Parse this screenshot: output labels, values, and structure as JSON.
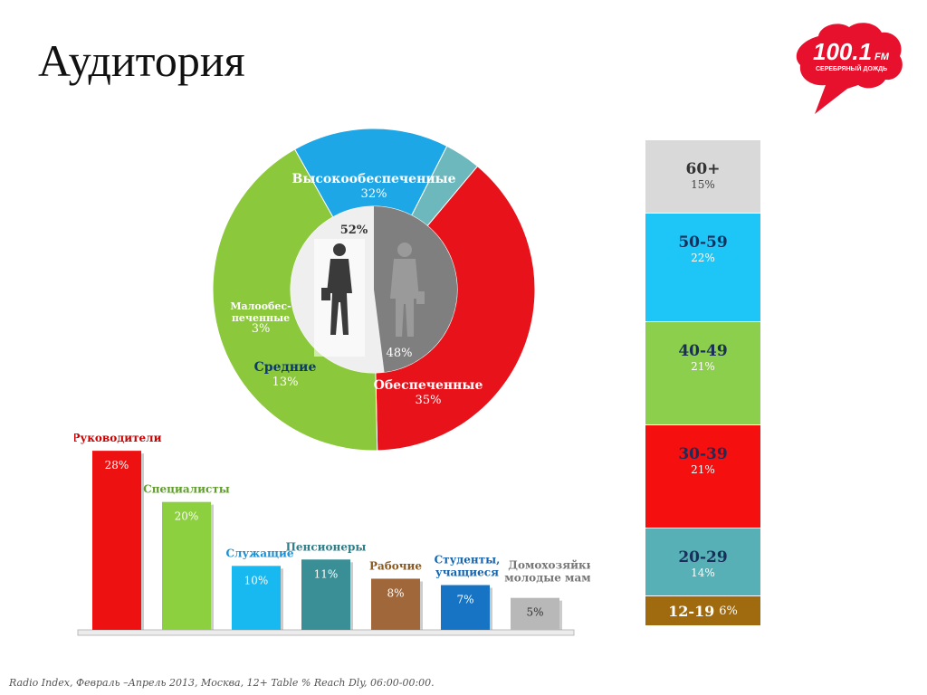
{
  "title": "Аудитория",
  "logo": {
    "line1": "100.1",
    "fm": "FM",
    "line2": "СЕРЕБРЯНЫЙ ДОЖДЬ",
    "color": "#e8112d"
  },
  "footer": "Radio Index, Февраль –Апрель 2013, Москва, 12+ Table % Reach Dly, 06:00-00:00.",
  "chart_data": [
    {
      "type": "pie",
      "subtype": "donut",
      "slices": [
        {
          "name": "Высокообеспеченные",
          "value": 32,
          "label": "32%",
          "color": "#e8121a"
        },
        {
          "name": "Обеспеченные",
          "value": 35,
          "label": "35%",
          "color": "#8cc83c"
        },
        {
          "name": "Средние",
          "value": 13,
          "label": "13%",
          "color": "#1ea7e6"
        },
        {
          "name": "Малообес-\nпеченные",
          "value": 3,
          "label": "3%",
          "color": "#6cb8bc"
        }
      ],
      "inner": [
        {
          "name": "female",
          "value": 52,
          "label": "52%",
          "color": "#efefef",
          "icon": "businesswoman-icon"
        },
        {
          "name": "male",
          "value": 48,
          "label": "48%",
          "color": "#7f7f7f",
          "icon": "businessman-icon"
        }
      ]
    },
    {
      "type": "bar",
      "categories": [
        "Руководители",
        "Специалисты",
        "Служащие",
        "Пенсионеры",
        "Рабочие",
        "Студенты,\nучащиеся",
        "Домохозяйки,\nмолодые мамы"
      ],
      "values": [
        28,
        20,
        10,
        11,
        8,
        7,
        5
      ],
      "labels": [
        "28%",
        "20%",
        "10%",
        "11%",
        "8%",
        "7%",
        "5%"
      ],
      "colors": [
        "#ee1111",
        "#8cd040",
        "#18b8f0",
        "#3a8f96",
        "#a0673a",
        "#1774c4",
        "#b8b8b8"
      ],
      "label_colors": [
        "#cc0000",
        "#5f9e2a",
        "#1c8fd0",
        "#2f7f88",
        "#8a5a20",
        "#1565b0",
        "#777777"
      ],
      "ylim": [
        0,
        30
      ]
    },
    {
      "type": "bar",
      "subtype": "stacked-100",
      "categories": [
        "60+",
        "50-59",
        "40-49",
        "30-39",
        "20-29",
        "12-19"
      ],
      "values": [
        15,
        22,
        21,
        21,
        14,
        6
      ],
      "labels": [
        "15%",
        "22%",
        "21%",
        "21%",
        "14%",
        "6%"
      ],
      "colors": [
        "#d9d9d9",
        "#1ec6f8",
        "#8ccf4c",
        "#f50f0f",
        "#56b0b6",
        "#a06a0e"
      ]
    }
  ]
}
